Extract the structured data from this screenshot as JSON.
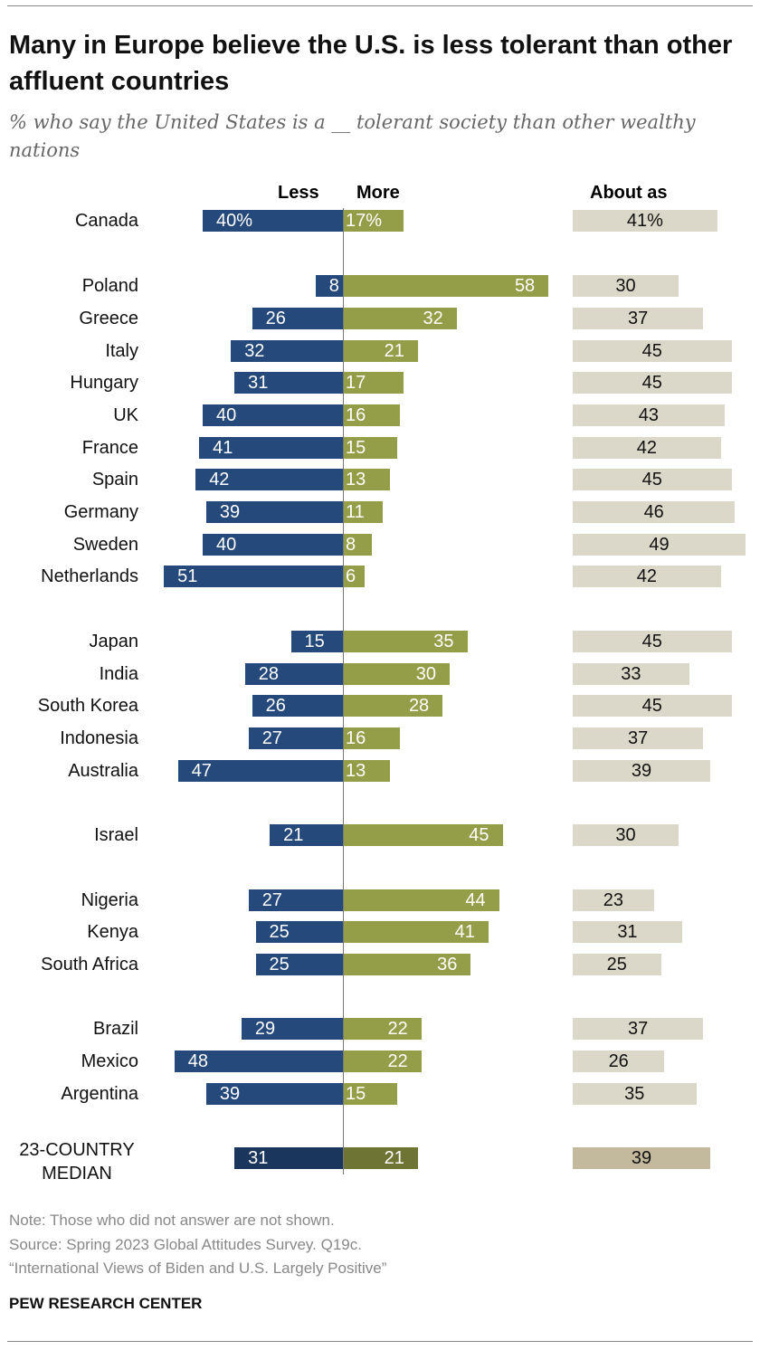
{
  "chart_data": {
    "type": "bar",
    "title": "Many in Europe believe the U.S. is less tolerant than other affluent countries",
    "subtitle": "% who say the United States is a __ tolerant society than other wealthy nations",
    "series_names": {
      "less": "Less",
      "more": "More",
      "about": "About as"
    },
    "colors": {
      "less": "#24497a",
      "more": "#949d48",
      "about": "#dcd8c9",
      "less_median": "#1b365c",
      "more_median": "#6d7434",
      "about_median": "#c3b99c"
    },
    "categories": [
      "Canada",
      "Poland",
      "Greece",
      "Italy",
      "Hungary",
      "UK",
      "France",
      "Spain",
      "Germany",
      "Sweden",
      "Netherlands",
      "Japan",
      "India",
      "South Korea",
      "Indonesia",
      "Australia",
      "Israel",
      "Nigeria",
      "Kenya",
      "South Africa",
      "Brazil",
      "Mexico",
      "Argentina",
      "23-COUNTRY MEDIAN"
    ],
    "groups": [
      1,
      1,
      1,
      1,
      1,
      1,
      1,
      1,
      1,
      1,
      1,
      2,
      2,
      2,
      2,
      2,
      3,
      4,
      4,
      4,
      5,
      5,
      5,
      6
    ],
    "less": [
      40,
      8,
      26,
      32,
      31,
      40,
      41,
      42,
      39,
      40,
      51,
      15,
      28,
      26,
      27,
      47,
      21,
      27,
      25,
      25,
      29,
      48,
      39,
      31
    ],
    "more": [
      17,
      58,
      32,
      21,
      17,
      16,
      15,
      13,
      11,
      8,
      6,
      35,
      30,
      28,
      16,
      13,
      45,
      44,
      41,
      36,
      22,
      22,
      15,
      21
    ],
    "about": [
      41,
      30,
      37,
      45,
      45,
      43,
      42,
      45,
      46,
      49,
      42,
      45,
      33,
      45,
      37,
      39,
      30,
      23,
      31,
      25,
      37,
      26,
      35,
      39
    ],
    "first_row_suffix": "%"
  },
  "notes": [
    "Note: Those who did not answer are not shown.",
    "Source: Spring 2023 Global Attitudes Survey. Q19c.",
    "“International Views of Biden and U.S. Largely Positive”"
  ],
  "brand": "PEW RESEARCH CENTER"
}
